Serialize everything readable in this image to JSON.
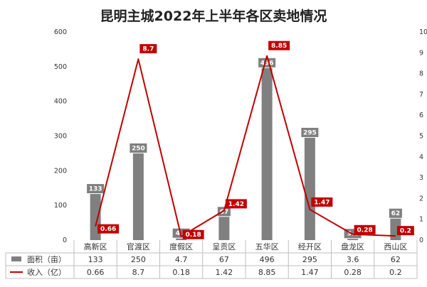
{
  "chart_data": {
    "type": "bar",
    "title": "昆明主城2022年上半年各区卖地情况",
    "categories": [
      "高新区",
      "官渡区",
      "度假区",
      "呈贡区",
      "五华区",
      "经开区",
      "盘龙区",
      "西山区"
    ],
    "series": [
      {
        "name": "面积（亩）",
        "type": "bar",
        "axis": "left",
        "color": "#808080",
        "values": [
          133,
          250,
          4.7,
          67,
          496,
          295,
          3.6,
          62
        ],
        "labels": [
          "133",
          "250",
          "4.7",
          "67",
          "496",
          "295",
          "3.6",
          "62"
        ]
      },
      {
        "name": "收入（亿）",
        "type": "line",
        "axis": "right",
        "color": "#c00000",
        "values": [
          0.66,
          8.7,
          0.18,
          1.42,
          8.85,
          1.47,
          0.28,
          0.2
        ],
        "labels": [
          "0.66",
          "8.7",
          "0.18",
          "1.42",
          "8.85",
          "1.47",
          "0.28",
          "0.2"
        ]
      }
    ],
    "y_left": {
      "min": 0,
      "max": 600,
      "ticks": [
        0,
        100,
        200,
        300,
        400,
        500,
        600
      ]
    },
    "y_right": {
      "min": 0,
      "max": 10,
      "ticks": [
        0,
        1,
        2,
        3,
        4,
        5,
        6,
        7,
        8,
        9,
        10
      ]
    },
    "grid": false,
    "data_table": true
  }
}
